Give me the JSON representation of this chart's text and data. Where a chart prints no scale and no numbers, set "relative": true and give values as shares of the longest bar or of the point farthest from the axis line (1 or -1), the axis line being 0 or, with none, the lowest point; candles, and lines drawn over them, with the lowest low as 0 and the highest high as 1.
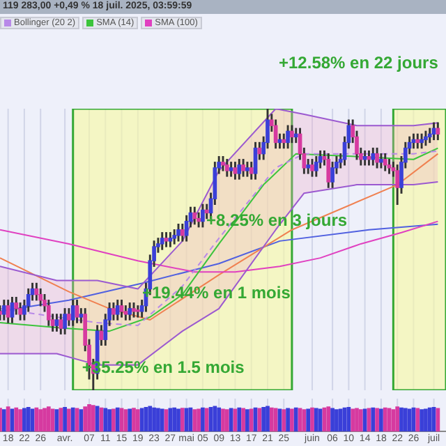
{
  "chart_data": [
    {
      "type": "candlestick",
      "title": "119 283,00 +0,49 % 18 juil. 2025, 03:59:59",
      "relative": true,
      "legend": "top left",
      "grid": "x",
      "tick_labels": false,
      "xlim": [
        "2025-03-16",
        "2025-07-04"
      ],
      "xticks": [
        {
          "value": "2025-03-18",
          "label": null
        },
        {
          "value": "2025-03-22",
          "label": null
        },
        {
          "value": "2025-03-26",
          "label": null
        },
        {
          "value": "2025-04-01",
          "label": null
        },
        {
          "value": "2025-04-07",
          "label": null
        },
        {
          "value": "2025-04-11",
          "label": null
        },
        {
          "value": "2025-04-15",
          "label": null
        },
        {
          "value": "2025-04-19",
          "label": null
        },
        {
          "value": "2025-04-23",
          "label": null
        },
        {
          "value": "2025-04-27",
          "label": null
        },
        {
          "value": "2025-05-01",
          "label": null
        },
        {
          "value": "2025-05-05",
          "label": null
        },
        {
          "value": "2025-05-09",
          "label": null
        },
        {
          "value": "2025-05-13",
          "label": null
        },
        {
          "value": "2025-05-17",
          "label": null
        },
        {
          "value": "2025-05-21",
          "label": null
        },
        {
          "value": "2025-05-25",
          "label": null
        },
        {
          "value": "2025-06-01",
          "label": null
        },
        {
          "value": "2025-06-06",
          "label": null
        },
        {
          "value": "2025-06-10",
          "label": null
        },
        {
          "value": "2025-06-14",
          "label": null
        },
        {
          "value": "2025-06-18",
          "label": null
        },
        {
          "value": "2025-06-22",
          "label": null
        },
        {
          "value": "2025-06-26",
          "label": null
        },
        {
          "value": "2025-07-01",
          "label": null
        }
      ],
      "x": [
        "2025-03-16",
        "2025-03-17",
        "2025-03-18",
        "2025-03-19",
        "2025-03-20",
        "2025-03-21",
        "2025-03-22",
        "2025-03-23",
        "2025-03-24",
        "2025-03-25",
        "2025-03-26",
        "2025-03-27",
        "2025-03-28",
        "2025-03-29",
        "2025-03-30",
        "2025-03-31",
        "2025-04-01",
        "2025-04-02",
        "2025-04-03",
        "2025-04-04",
        "2025-04-05",
        "2025-04-06",
        "2025-04-07",
        "2025-04-08",
        "2025-04-09",
        "2025-04-10",
        "2025-04-11",
        "2025-04-12",
        "2025-04-13",
        "2025-04-14",
        "2025-04-15",
        "2025-04-16",
        "2025-04-17",
        "2025-04-18",
        "2025-04-19",
        "2025-04-20",
        "2025-04-21",
        "2025-04-22",
        "2025-04-23",
        "2025-04-24",
        "2025-04-25",
        "2025-04-26",
        "2025-04-27",
        "2025-04-28",
        "2025-04-29",
        "2025-04-30",
        "2025-05-01",
        "2025-05-02",
        "2025-05-03",
        "2025-05-04",
        "2025-05-05",
        "2025-05-06",
        "2025-05-07",
        "2025-05-08",
        "2025-05-09",
        "2025-05-10",
        "2025-05-11",
        "2025-05-12",
        "2025-05-13",
        "2025-05-14",
        "2025-05-15",
        "2025-05-16",
        "2025-05-17",
        "2025-05-18",
        "2025-05-19",
        "2025-05-20",
        "2025-05-21",
        "2025-05-22",
        "2025-05-23",
        "2025-05-24",
        "2025-05-25",
        "2025-05-26",
        "2025-05-27",
        "2025-05-28",
        "2025-05-29",
        "2025-05-30",
        "2025-05-31",
        "2025-06-01",
        "2025-06-02",
        "2025-06-03",
        "2025-06-04",
        "2025-06-05",
        "2025-06-06",
        "2025-06-07",
        "2025-06-08",
        "2025-06-09",
        "2025-06-10",
        "2025-06-11",
        "2025-06-12",
        "2025-06-13",
        "2025-06-14",
        "2025-06-15",
        "2025-06-16",
        "2025-06-17",
        "2025-06-18",
        "2025-06-19",
        "2025-06-20",
        "2025-06-21",
        "2025-06-22",
        "2025-06-23",
        "2025-06-24",
        "2025-06-25",
        "2025-06-26",
        "2025-06-27",
        "2025-06-28",
        "2025-06-29",
        "2025-06-30",
        "2025-07-01",
        "2025-07-02"
      ],
      "ohlc": [
        [
          0.28,
          0.3,
          0.25,
          0.27
        ],
        [
          0.27,
          0.32,
          0.25,
          0.3
        ],
        [
          0.3,
          0.32,
          0.24,
          0.26
        ],
        [
          0.26,
          0.33,
          0.24,
          0.31
        ],
        [
          0.31,
          0.33,
          0.27,
          0.29
        ],
        [
          0.29,
          0.31,
          0.25,
          0.27
        ],
        [
          0.27,
          0.32,
          0.25,
          0.3
        ],
        [
          0.3,
          0.36,
          0.28,
          0.34
        ],
        [
          0.34,
          0.38,
          0.32,
          0.36
        ],
        [
          0.36,
          0.38,
          0.32,
          0.34
        ],
        [
          0.34,
          0.36,
          0.3,
          0.32
        ],
        [
          0.32,
          0.34,
          0.28,
          0.3
        ],
        [
          0.3,
          0.32,
          0.23,
          0.25
        ],
        [
          0.25,
          0.27,
          0.21,
          0.23
        ],
        [
          0.23,
          0.27,
          0.21,
          0.25
        ],
        [
          0.25,
          0.27,
          0.2,
          0.22
        ],
        [
          0.22,
          0.29,
          0.2,
          0.27
        ],
        [
          0.27,
          0.29,
          0.23,
          0.25
        ],
        [
          0.25,
          0.32,
          0.23,
          0.3
        ],
        [
          0.3,
          0.32,
          0.24,
          0.26
        ],
        [
          0.26,
          0.29,
          0.24,
          0.27
        ],
        [
          0.27,
          0.29,
          0.14,
          0.16
        ],
        [
          0.16,
          0.18,
          0.04,
          0.09
        ],
        [
          0.09,
          0.11,
          0,
          0.06
        ],
        [
          0.06,
          0.23,
          0.04,
          0.21
        ],
        [
          0.21,
          0.23,
          0.16,
          0.18
        ],
        [
          0.18,
          0.27,
          0.16,
          0.25
        ],
        [
          0.25,
          0.31,
          0.23,
          0.29
        ],
        [
          0.29,
          0.31,
          0.25,
          0.27
        ],
        [
          0.27,
          0.32,
          0.25,
          0.3
        ],
        [
          0.3,
          0.32,
          0.26,
          0.28
        ],
        [
          0.28,
          0.3,
          0.25,
          0.27
        ],
        [
          0.27,
          0.31,
          0.25,
          0.29
        ],
        [
          0.29,
          0.31,
          0.26,
          0.28
        ],
        [
          0.28,
          0.3,
          0.26,
          0.28
        ],
        [
          0.28,
          0.32,
          0.26,
          0.3
        ],
        [
          0.3,
          0.38,
          0.28,
          0.36
        ],
        [
          0.36,
          0.48,
          0.34,
          0.46
        ],
        [
          0.46,
          0.53,
          0.44,
          0.51
        ],
        [
          0.51,
          0.54,
          0.49,
          0.52
        ],
        [
          0.52,
          0.56,
          0.5,
          0.54
        ],
        [
          0.54,
          0.56,
          0.51,
          0.53
        ],
        [
          0.53,
          0.56,
          0.51,
          0.54
        ],
        [
          0.54,
          0.57,
          0.52,
          0.55
        ],
        [
          0.55,
          0.59,
          0.53,
          0.57
        ],
        [
          0.57,
          0.59,
          0.53,
          0.55
        ],
        [
          0.55,
          0.62,
          0.53,
          0.6
        ],
        [
          0.6,
          0.65,
          0.58,
          0.63
        ],
        [
          0.63,
          0.65,
          0.59,
          0.61
        ],
        [
          0.61,
          0.63,
          0.58,
          0.6
        ],
        [
          0.6,
          0.66,
          0.58,
          0.64
        ],
        [
          0.64,
          0.66,
          0.61,
          0.63
        ],
        [
          0.63,
          0.7,
          0.61,
          0.68
        ],
        [
          0.68,
          0.81,
          0.66,
          0.79
        ],
        [
          0.79,
          0.83,
          0.77,
          0.81
        ],
        [
          0.81,
          0.83,
          0.78,
          0.8
        ],
        [
          0.8,
          0.82,
          0.76,
          0.78
        ],
        [
          0.78,
          0.81,
          0.76,
          0.79
        ],
        [
          0.79,
          0.81,
          0.75,
          0.77
        ],
        [
          0.77,
          0.82,
          0.75,
          0.8
        ],
        [
          0.8,
          0.82,
          0.76,
          0.78
        ],
        [
          0.78,
          0.81,
          0.76,
          0.79
        ],
        [
          0.79,
          0.81,
          0.75,
          0.77
        ],
        [
          0.77,
          0.88,
          0.75,
          0.86
        ],
        [
          0.86,
          0.88,
          0.82,
          0.84
        ],
        [
          0.84,
          0.9,
          0.82,
          0.88
        ],
        [
          0.88,
          1,
          0.86,
          0.96
        ],
        [
          0.96,
          0.98,
          0.92,
          0.94
        ],
        [
          0.94,
          0.96,
          0.86,
          0.88
        ],
        [
          0.88,
          0.91,
          0.86,
          0.89
        ],
        [
          0.89,
          0.91,
          0.86,
          0.88
        ],
        [
          0.88,
          0.94,
          0.86,
          0.92
        ],
        [
          0.92,
          0.94,
          0.88,
          0.9
        ],
        [
          0.9,
          0.93,
          0.88,
          0.91
        ],
        [
          0.91,
          0.93,
          0.82,
          0.84
        ],
        [
          0.84,
          0.86,
          0.77,
          0.79
        ],
        [
          0.79,
          0.82,
          0.77,
          0.8
        ],
        [
          0.8,
          0.82,
          0.76,
          0.78
        ],
        [
          0.78,
          0.83,
          0.76,
          0.81
        ],
        [
          0.81,
          0.85,
          0.79,
          0.83
        ],
        [
          0.83,
          0.85,
          0.8,
          0.82
        ],
        [
          0.82,
          0.84,
          0.72,
          0.74
        ],
        [
          0.74,
          0.81,
          0.72,
          0.79
        ],
        [
          0.79,
          0.83,
          0.77,
          0.81
        ],
        [
          0.81,
          0.84,
          0.79,
          0.82
        ],
        [
          0.82,
          0.9,
          0.8,
          0.88
        ],
        [
          0.88,
          0.96,
          0.86,
          0.94
        ],
        [
          0.94,
          0.96,
          0.88,
          0.9
        ],
        [
          0.9,
          0.92,
          0.82,
          0.84
        ],
        [
          0.84,
          0.86,
          0.8,
          0.82
        ],
        [
          0.82,
          0.85,
          0.8,
          0.83
        ],
        [
          0.83,
          0.85,
          0.8,
          0.82
        ],
        [
          0.82,
          0.86,
          0.8,
          0.84
        ],
        [
          0.84,
          0.86,
          0.79,
          0.81
        ],
        [
          0.81,
          0.84,
          0.79,
          0.82
        ],
        [
          0.82,
          0.84,
          0.78,
          0.8
        ],
        [
          0.8,
          0.82,
          0.77,
          0.79
        ],
        [
          0.79,
          0.81,
          0.76,
          0.78
        ],
        [
          0.78,
          0.8,
          0.66,
          0.72
        ],
        [
          0.72,
          0.83,
          0.7,
          0.81
        ],
        [
          0.81,
          0.88,
          0.79,
          0.86
        ],
        [
          0.86,
          0.9,
          0.84,
          0.88
        ],
        [
          0.88,
          0.91,
          0.86,
          0.89
        ],
        [
          0.89,
          0.91,
          0.86,
          0.88
        ],
        [
          0.88,
          0.91,
          0.86,
          0.89
        ],
        [
          0.89,
          0.92,
          0.87,
          0.9
        ],
        [
          0.9,
          0.93,
          0.88,
          0.91
        ],
        [
          0.91,
          0.95,
          0.89,
          0.93
        ],
        [
          0.93,
          0.95,
          0.89,
          0.91
        ]
      ],
      "colors": [
        "#d63aa0",
        "#3a3fd8",
        "#d63aa0",
        "#3a3fd8",
        "#d63aa0",
        "#d63aa0",
        "#3a3fd8",
        "#3a3fd8",
        "#3a3fd8",
        "#d63aa0",
        "#d63aa0",
        "#d63aa0",
        "#d63aa0",
        "#d63aa0",
        "#3a3fd8",
        "#d63aa0",
        "#3a3fd8",
        "#d63aa0",
        "#3a3fd8",
        "#d63aa0",
        "#3a3fd8",
        "#d63aa0",
        "#d63aa0",
        "#d63aa0",
        "#3a3fd8",
        "#d63aa0",
        "#3a3fd8",
        "#3a3fd8",
        "#d63aa0",
        "#3a3fd8",
        "#d63aa0",
        "#d63aa0",
        "#3a3fd8",
        "#d63aa0",
        "#d63aa0",
        "#3a3fd8",
        "#3a3fd8",
        "#3a3fd8",
        "#3a3fd8",
        "#3a3fd8",
        "#3a3fd8",
        "#d63aa0",
        "#3a3fd8",
        "#3a3fd8",
        "#3a3fd8",
        "#d63aa0",
        "#3a3fd8",
        "#3a3fd8",
        "#d63aa0",
        "#d63aa0",
        "#3a3fd8",
        "#d63aa0",
        "#3a3fd8",
        "#3a3fd8",
        "#3a3fd8",
        "#d63aa0",
        "#d63aa0",
        "#3a3fd8",
        "#d63aa0",
        "#3a3fd8",
        "#d63aa0",
        "#3a3fd8",
        "#d63aa0",
        "#3a3fd8",
        "#d63aa0",
        "#3a3fd8",
        "#3a3fd8",
        "#d63aa0",
        "#d63aa0",
        "#3a3fd8",
        "#d63aa0",
        "#3a3fd8",
        "#d63aa0",
        "#3a3fd8",
        "#d63aa0",
        "#d63aa0",
        "#3a3fd8",
        "#d63aa0",
        "#3a3fd8",
        "#3a3fd8",
        "#d63aa0",
        "#d63aa0",
        "#3a3fd8",
        "#3a3fd8",
        "#3a3fd8",
        "#3a3fd8",
        "#3a3fd8",
        "#d63aa0",
        "#d63aa0",
        "#d63aa0",
        "#3a3fd8",
        "#d63aa0",
        "#3a3fd8",
        "#d63aa0",
        "#3a3fd8",
        "#d63aa0",
        "#d63aa0",
        "#d63aa0",
        "#d63aa0",
        "#3a3fd8",
        "#3a3fd8",
        "#3a3fd8",
        "#3a3fd8",
        "#d63aa0",
        "#3a3fd8",
        "#3a3fd8",
        "#3a3fd8",
        "#3a3fd8",
        "#d63aa0"
      ],
      "series": [
        {
          "type": "line",
          "color": "#9b59d0",
          "x": [
            "2025-03-16",
            "2025-03-30",
            "2025-04-09",
            "2025-04-19",
            "2025-04-30",
            "2025-05-09",
            "2025-05-23",
            "2025-05-30",
            "2025-06-12",
            "2025-06-26",
            "2025-07-02"
          ],
          "values": [
            0.44,
            0.39,
            0.39,
            0.36,
            0.53,
            0.78,
            1,
            0.98,
            0.94,
            0.94,
            0.95
          ]
        },
        {
          "type": "line",
          "color": "#9b59d0",
          "x": [
            "2025-03-16",
            "2025-03-30",
            "2025-04-09",
            "2025-04-19",
            "2025-04-30",
            "2025-05-09",
            "2025-05-23",
            "2025-05-30",
            "2025-06-12",
            "2025-06-26",
            "2025-07-02"
          ],
          "values": [
            0.13,
            0.13,
            0.09,
            0.09,
            0.21,
            0.29,
            0.57,
            0.7,
            0.73,
            0.73,
            0.74
          ]
        },
        {
          "type": "line",
          "name": "Bollinger (20 2)",
          "color": "#b889e8",
          "line_style": "dashed",
          "x": [
            "2025-03-16",
            "2025-03-30",
            "2025-04-09",
            "2025-04-19",
            "2025-04-30",
            "2025-05-09",
            "2025-05-23",
            "2025-05-30",
            "2025-06-12",
            "2025-06-26",
            "2025-07-02"
          ],
          "values": [
            0.29,
            0.26,
            0.24,
            0.23,
            0.37,
            0.54,
            0.79,
            0.84,
            0.84,
            0.84,
            0.85
          ],
          "lower": [
            0.13,
            0.13,
            0.09,
            0.09,
            0.21,
            0.29,
            0.57,
            0.7,
            0.73,
            0.73,
            0.74
          ],
          "upper": [
            0.44,
            0.39,
            0.39,
            0.36,
            0.53,
            0.78,
            1,
            0.98,
            0.94,
            0.94,
            0.95
          ]
        },
        {
          "type": "line",
          "name": "SMA (14)",
          "color": "#3cc43c",
          "x": [
            "2025-03-16",
            "2025-04-01",
            "2025-04-12",
            "2025-04-22",
            "2025-04-30",
            "2025-05-09",
            "2025-05-20",
            "2025-05-28",
            "2025-06-12",
            "2025-06-26",
            "2025-07-02"
          ],
          "values": [
            0.24,
            0.22,
            0.21,
            0.26,
            0.34,
            0.52,
            0.73,
            0.84,
            0.83,
            0.82,
            0.86
          ]
        },
        {
          "type": "line",
          "name": "SMA (100)",
          "color": "#e040c0",
          "x": [
            "2025-03-16",
            "2025-04-02",
            "2025-04-19",
            "2025-05-03",
            "2025-05-13",
            "2025-05-24",
            "2025-06-03",
            "2025-06-13",
            "2025-06-23",
            "2025-07-02"
          ],
          "values": [
            0.57,
            0.52,
            0.46,
            0.42,
            0.42,
            0.44,
            0.47,
            0.52,
            0.56,
            0.6
          ]
        },
        {
          "type": "line",
          "color": "#f08050",
          "x": [
            "2025-03-16",
            "2025-04-02",
            "2025-04-12",
            "2025-04-22",
            "2025-05-09",
            "2025-05-27",
            "2025-06-22",
            "2025-07-02"
          ],
          "values": [
            0.47,
            0.35,
            0.29,
            0.25,
            0.41,
            0.57,
            0.73,
            0.84
          ]
        },
        {
          "type": "line",
          "color": "#5060e0",
          "x": [
            "2025-03-16",
            "2025-04-02",
            "2025-04-20",
            "2025-05-09",
            "2025-05-24",
            "2025-06-15",
            "2025-07-02"
          ],
          "values": [
            0.28,
            0.32,
            0.38,
            0.45,
            0.53,
            0.57,
            0.59
          ]
        }
      ],
      "bands": [
        {
          "axis": "x",
          "from": "2025-04-03",
          "to": "2025-05-27",
          "color": "#f8faa0"
        },
        {
          "axis": "x",
          "from": "2025-06-21",
          "to": "2025-07-04",
          "color": "#f8faa0"
        }
      ],
      "annotations": [
        {
          "text": "+35.25% en 1.5 mois",
          "x": "2025-04-08",
          "y": 0
        },
        "+19.44% en 1 mois",
        "+8.25% en 3 jours",
        "+12.58% en 22 jours"
      ]
    },
    {
      "type": "bar",
      "relative": true,
      "grid": "x",
      "tick_labels": "x",
      "xlim": [
        "2025-03-16",
        "2025-07-04"
      ],
      "xticks": [
        {
          "value": "2025-03-18",
          "label": "18"
        },
        {
          "value": "2025-03-22",
          "label": "22"
        },
        {
          "value": "2025-03-26",
          "label": "26"
        },
        {
          "value": "2025-04-01",
          "label": "avr."
        },
        {
          "value": "2025-04-07",
          "label": "07"
        },
        {
          "value": "2025-04-11",
          "label": "11"
        },
        {
          "value": "2025-04-15",
          "label": "15"
        },
        {
          "value": "2025-04-19",
          "label": "19"
        },
        {
          "value": "2025-04-23",
          "label": "23"
        },
        {
          "value": "2025-04-27",
          "label": "27"
        },
        {
          "value": "2025-05-01",
          "label": "mai"
        },
        {
          "value": "2025-05-05",
          "label": "05"
        },
        {
          "value": "2025-05-09",
          "label": "09"
        },
        {
          "value": "2025-05-13",
          "label": "13"
        },
        {
          "value": "2025-05-17",
          "label": "17"
        },
        {
          "value": "2025-05-21",
          "label": "21"
        },
        {
          "value": "2025-05-25",
          "label": "25"
        },
        {
          "value": "2025-06-01",
          "label": "juin"
        },
        {
          "value": "2025-06-06",
          "label": "06"
        },
        {
          "value": "2025-06-10",
          "label": "10"
        },
        {
          "value": "2025-06-14",
          "label": "14"
        },
        {
          "value": "2025-06-18",
          "label": "18"
        },
        {
          "value": "2025-06-22",
          "label": "22"
        },
        {
          "value": "2025-06-26",
          "label": "26"
        },
        {
          "value": "2025-07-01",
          "label": "juil"
        }
      ],
      "x": [
        "2025-03-16",
        "2025-03-17",
        "2025-03-18",
        "2025-03-19",
        "2025-03-20",
        "2025-03-21",
        "2025-03-22",
        "2025-03-23",
        "2025-03-24",
        "2025-03-25",
        "2025-03-26",
        "2025-03-27",
        "2025-03-28",
        "2025-03-29",
        "2025-03-30",
        "2025-03-31",
        "2025-04-01",
        "2025-04-02",
        "2025-04-03",
        "2025-04-04",
        "2025-04-05",
        "2025-04-06",
        "2025-04-07",
        "2025-04-08",
        "2025-04-09",
        "2025-04-10",
        "2025-04-11",
        "2025-04-12",
        "2025-04-13",
        "2025-04-14",
        "2025-04-15",
        "2025-04-16",
        "2025-04-17",
        "2025-04-18",
        "2025-04-19",
        "2025-04-20",
        "2025-04-21",
        "2025-04-22",
        "2025-04-23",
        "2025-04-24",
        "2025-04-25",
        "2025-04-26",
        "2025-04-27",
        "2025-04-28",
        "2025-04-29",
        "2025-04-30",
        "2025-05-01",
        "2025-05-02",
        "2025-05-03",
        "2025-05-04",
        "2025-05-05",
        "2025-05-06",
        "2025-05-07",
        "2025-05-08",
        "2025-05-09",
        "2025-05-10",
        "2025-05-11",
        "2025-05-12",
        "2025-05-13",
        "2025-05-14",
        "2025-05-15",
        "2025-05-16",
        "2025-05-17",
        "2025-05-18",
        "2025-05-19",
        "2025-05-20",
        "2025-05-21",
        "2025-05-22",
        "2025-05-23",
        "2025-05-24",
        "2025-05-25",
        "2025-05-26",
        "2025-05-27",
        "2025-05-28",
        "2025-05-29",
        "2025-05-30",
        "2025-05-31",
        "2025-06-01",
        "2025-06-02",
        "2025-06-03",
        "2025-06-04",
        "2025-06-05",
        "2025-06-06",
        "2025-06-07",
        "2025-06-08",
        "2025-06-09",
        "2025-06-10",
        "2025-06-11",
        "2025-06-12",
        "2025-06-13",
        "2025-06-14",
        "2025-06-15",
        "2025-06-16",
        "2025-06-17",
        "2025-06-18",
        "2025-06-19",
        "2025-06-20",
        "2025-06-21",
        "2025-06-22",
        "2025-06-23",
        "2025-06-24",
        "2025-06-25",
        "2025-06-26",
        "2025-06-27",
        "2025-06-28",
        "2025-06-29",
        "2025-06-30",
        "2025-07-01",
        "2025-07-02"
      ],
      "values": [
        0.85,
        0.8,
        0.9,
        0.82,
        0.86,
        0.8,
        0.84,
        0.88,
        0.82,
        0.86,
        0.8,
        0.84,
        0.9,
        0.82,
        0.8,
        0.85,
        0.88,
        0.82,
        0.86,
        0.84,
        0.8,
        0.9,
        1,
        0.95,
        0.92,
        0.86,
        0.84,
        0.8,
        0.82,
        0.86,
        0.84,
        0.8,
        0.82,
        0.85,
        0.8,
        0.84,
        0.88,
        0.92,
        0.86,
        0.84,
        0.82,
        0.8,
        0.84,
        0.86,
        0.82,
        0.85,
        0.84,
        0.86,
        0.8,
        0.82,
        0.86,
        0.84,
        0.88,
        0.92,
        0.86,
        0.82,
        0.8,
        0.84,
        0.82,
        0.86,
        0.84,
        0.8,
        0.82,
        0.86,
        0.84,
        0.88,
        0.92,
        0.86,
        0.84,
        0.82,
        0.8,
        0.84,
        0.82,
        0.86,
        0.84,
        0.8,
        0.82,
        0.86,
        0.84,
        0.82,
        0.86,
        0.9,
        0.84,
        0.8,
        0.82,
        0.86,
        0.88,
        0.82,
        0.84,
        0.8,
        0.82,
        0.84,
        0.86,
        0.84,
        0.82,
        0.86,
        0.84,
        0.8,
        0.9,
        0.86,
        0.84,
        0.82,
        0.86,
        0.84,
        0.8,
        0.82,
        0.86,
        0.88,
        0.84
      ],
      "colors": [
        "#d63aa0",
        "#3a3fd8",
        "#d63aa0",
        "#3a3fd8",
        "#d63aa0",
        "#d63aa0",
        "#3a3fd8",
        "#3a3fd8",
        "#3a3fd8",
        "#d63aa0",
        "#d63aa0",
        "#d63aa0",
        "#d63aa0",
        "#d63aa0",
        "#3a3fd8",
        "#d63aa0",
        "#3a3fd8",
        "#d63aa0",
        "#3a3fd8",
        "#d63aa0",
        "#3a3fd8",
        "#d63aa0",
        "#d63aa0",
        "#d63aa0",
        "#3a3fd8",
        "#d63aa0",
        "#3a3fd8",
        "#3a3fd8",
        "#d63aa0",
        "#3a3fd8",
        "#d63aa0",
        "#d63aa0",
        "#3a3fd8",
        "#d63aa0",
        "#d63aa0",
        "#3a3fd8",
        "#3a3fd8",
        "#3a3fd8",
        "#3a3fd8",
        "#3a3fd8",
        "#3a3fd8",
        "#d63aa0",
        "#3a3fd8",
        "#3a3fd8",
        "#3a3fd8",
        "#d63aa0",
        "#3a3fd8",
        "#3a3fd8",
        "#d63aa0",
        "#d63aa0",
        "#3a3fd8",
        "#d63aa0",
        "#3a3fd8",
        "#3a3fd8",
        "#3a3fd8",
        "#d63aa0",
        "#d63aa0",
        "#3a3fd8",
        "#d63aa0",
        "#3a3fd8",
        "#d63aa0",
        "#3a3fd8",
        "#d63aa0",
        "#3a3fd8",
        "#d63aa0",
        "#3a3fd8",
        "#3a3fd8",
        "#d63aa0",
        "#d63aa0",
        "#3a3fd8",
        "#d63aa0",
        "#3a3fd8",
        "#d63aa0",
        "#3a3fd8",
        "#d63aa0",
        "#d63aa0",
        "#3a3fd8",
        "#d63aa0",
        "#3a3fd8",
        "#3a3fd8",
        "#d63aa0",
        "#d63aa0",
        "#3a3fd8",
        "#3a3fd8",
        "#3a3fd8",
        "#3a3fd8",
        "#3a3fd8",
        "#d63aa0",
        "#d63aa0",
        "#d63aa0",
        "#3a3fd8",
        "#d63aa0",
        "#3a3fd8",
        "#d63aa0",
        "#3a3fd8",
        "#d63aa0",
        "#d63aa0",
        "#d63aa0",
        "#d63aa0",
        "#3a3fd8",
        "#3a3fd8",
        "#3a3fd8",
        "#3a3fd8",
        "#d63aa0",
        "#3a3fd8",
        "#3a3fd8",
        "#3a3fd8",
        "#3a3fd8",
        "#d63aa0"
      ]
    }
  ]
}
